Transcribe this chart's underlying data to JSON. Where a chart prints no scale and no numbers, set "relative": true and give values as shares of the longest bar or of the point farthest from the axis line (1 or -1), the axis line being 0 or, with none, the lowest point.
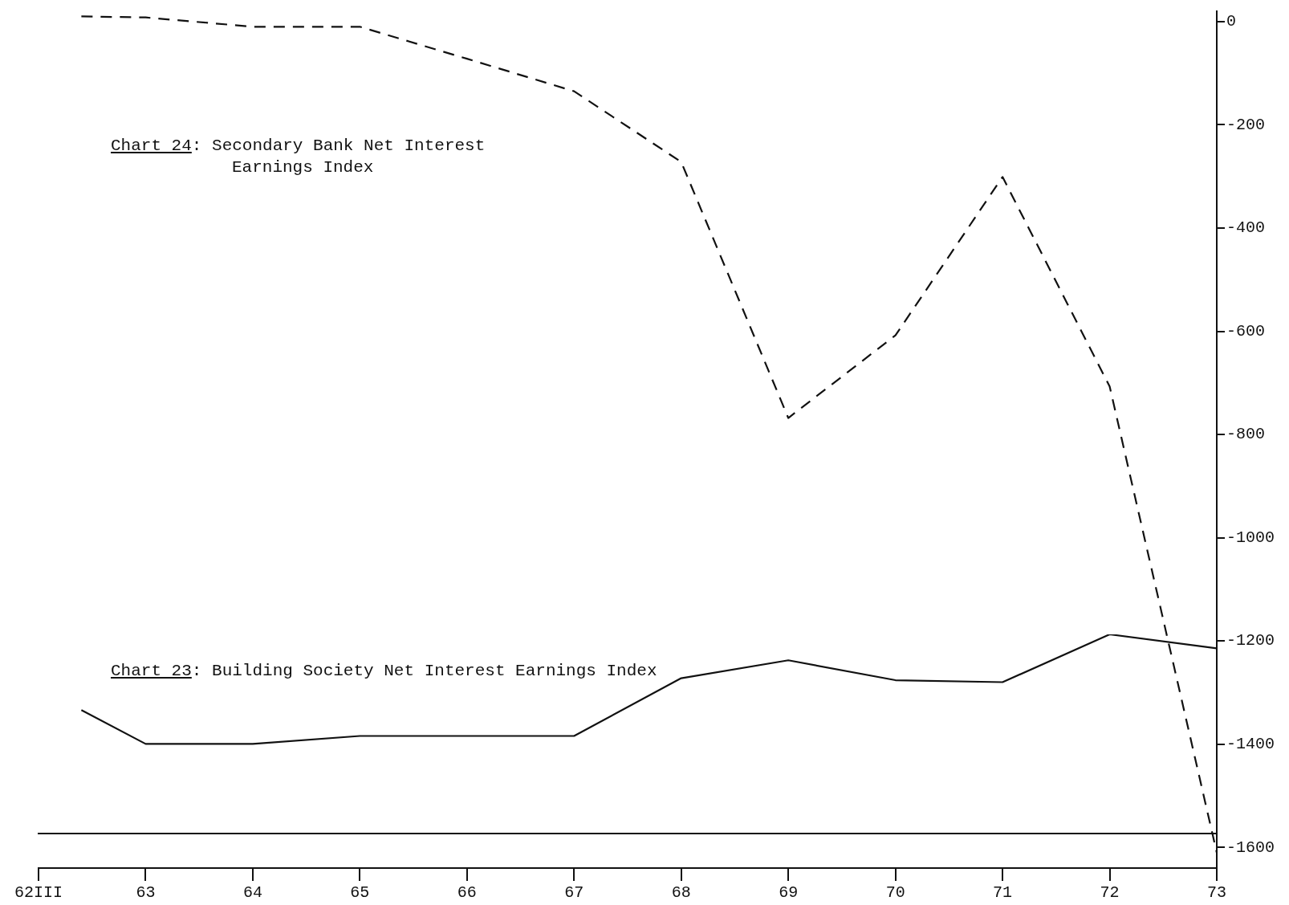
{
  "chart_data": [
    {
      "type": "line",
      "title": "Chart 24: Secondary Bank Net Interest Earnings Index",
      "x": [
        62.4,
        63,
        64,
        65,
        66,
        67,
        68,
        69,
        70,
        71,
        72,
        73
      ],
      "series": [
        {
          "color": "#111111",
          "values": [
            10,
            8,
            -10,
            -10,
            -72,
            -135,
            -272,
            -768,
            -608,
            -301,
            -707,
            -1610
          ]
        }
      ],
      "xlim": [
        62,
        73
      ],
      "xticks": [
        {
          "value": 62,
          "label": "62III"
        },
        63,
        64,
        65,
        66,
        67,
        68,
        69,
        70,
        71,
        72,
        73
      ],
      "ylim": [
        -1640,
        20
      ],
      "yticks": [
        0,
        -200,
        -400,
        -600,
        -800,
        -1000,
        -1200,
        -1400,
        -1600
      ],
      "grid": false,
      "legend": false,
      "marker": "none",
      "line_style": "dashed"
    },
    {
      "type": "line",
      "title": "Chart 23: Building Society Net Interest Earnings Index",
      "relative": true,
      "x": [
        62.4,
        63,
        64,
        65,
        66,
        67,
        68,
        69,
        70,
        71,
        72,
        73
      ],
      "series": [
        {
          "color": "#111111",
          "values": [
            0.62,
            0.45,
            0.45,
            0.49,
            0.49,
            0.49,
            0.78,
            0.87,
            0.77,
            0.76,
            1.0,
            0.93
          ]
        }
      ],
      "xlim": [
        62,
        73
      ],
      "grid": false,
      "legend": false,
      "marker": "none",
      "line_style": "solid"
    }
  ]
}
